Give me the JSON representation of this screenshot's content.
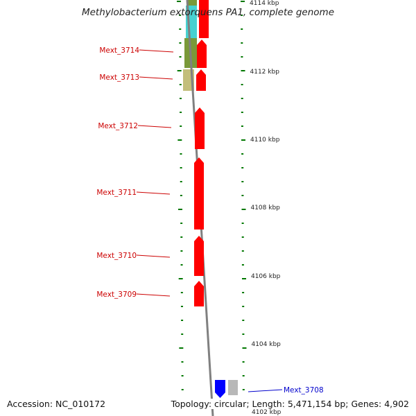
{
  "title": "Methylobacterium extorquens PA1, complete genome",
  "footer": {
    "accession_label": "Accession:",
    "accession": "NC_010172",
    "topology_label": "Topology:",
    "topology": "circular;",
    "length_label": "Length:",
    "length": "5,471,154 bp;",
    "genes_label": "Genes:",
    "genes": "4,902"
  },
  "colors": {
    "forward_gene": "#ff0000",
    "reverse_gene": "#0000ff",
    "forward_label": "#cc0000",
    "reverse_label": "#0000cc",
    "tick": "#007700",
    "backbone": "#808080",
    "feature_cyan": "#33cccc",
    "feature_olive": "#6b8e23",
    "feature_khaki": "#bdb76b",
    "feature_gray": "#b0b0b0"
  },
  "scale_labels": [
    {
      "kbp": 4114,
      "text": "4114 kbp"
    },
    {
      "kbp": 4112,
      "text": "4112 kbp"
    },
    {
      "kbp": 4110,
      "text": "4110 kbp"
    },
    {
      "kbp": 4108,
      "text": "4108 kbp"
    },
    {
      "kbp": 4106,
      "text": "4106 kbp"
    },
    {
      "kbp": 4104,
      "text": "4104 kbp"
    },
    {
      "kbp": 4102,
      "text": "4102 kbp"
    }
  ],
  "genes": [
    {
      "label": "Mext_3714",
      "strand": "forward"
    },
    {
      "label": "Mext_3713",
      "strand": "forward"
    },
    {
      "label": "Mext_3712",
      "strand": "forward"
    },
    {
      "label": "Mext_3711",
      "strand": "forward"
    },
    {
      "label": "Mext_3710",
      "strand": "forward"
    },
    {
      "label": "Mext_3709",
      "strand": "forward"
    },
    {
      "label": "Mext_3708",
      "strand": "reverse"
    }
  ]
}
